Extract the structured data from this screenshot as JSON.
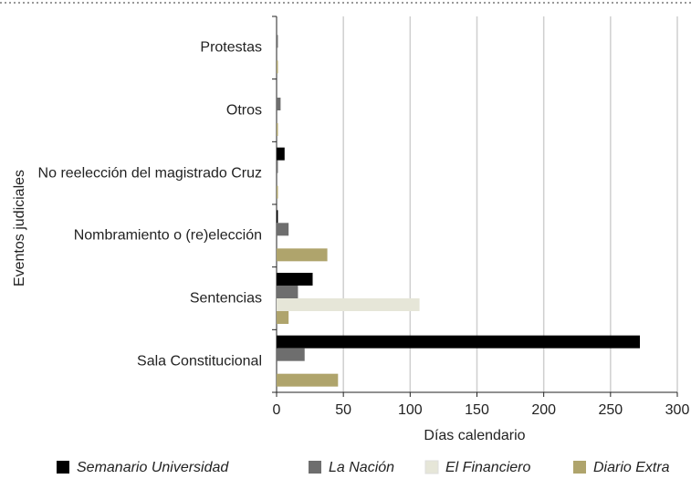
{
  "chart_data": {
    "type": "bar",
    "orientation": "horizontal",
    "categories": [
      "Protestas",
      "Otros",
      "No reelección del magistrado Cruz",
      "Nombramiento o (re)elección",
      "Sentencias",
      "Sala Constitucional"
    ],
    "series": [
      {
        "name": "Semanario Universidad",
        "color": "#000000",
        "values": [
          0,
          0,
          6,
          1,
          27,
          272
        ]
      },
      {
        "name": "La Nación",
        "color": "#6e6e6e",
        "values": [
          1,
          3,
          1,
          9,
          16,
          21
        ]
      },
      {
        "name": "El Financiero",
        "color": "#e6e6d8",
        "values": [
          0,
          0,
          0,
          0,
          107,
          0
        ]
      },
      {
        "name": "Diario Extra",
        "color": "#afa46c",
        "values": [
          1,
          1,
          1,
          38,
          9,
          46
        ]
      }
    ],
    "xlim": [
      0,
      300
    ],
    "xticks": [
      0,
      50,
      100,
      150,
      200,
      250,
      300
    ],
    "xlabel": "Días calendario",
    "ylabel": "Eventos judiciales",
    "grid": true,
    "legend": "bottom"
  }
}
